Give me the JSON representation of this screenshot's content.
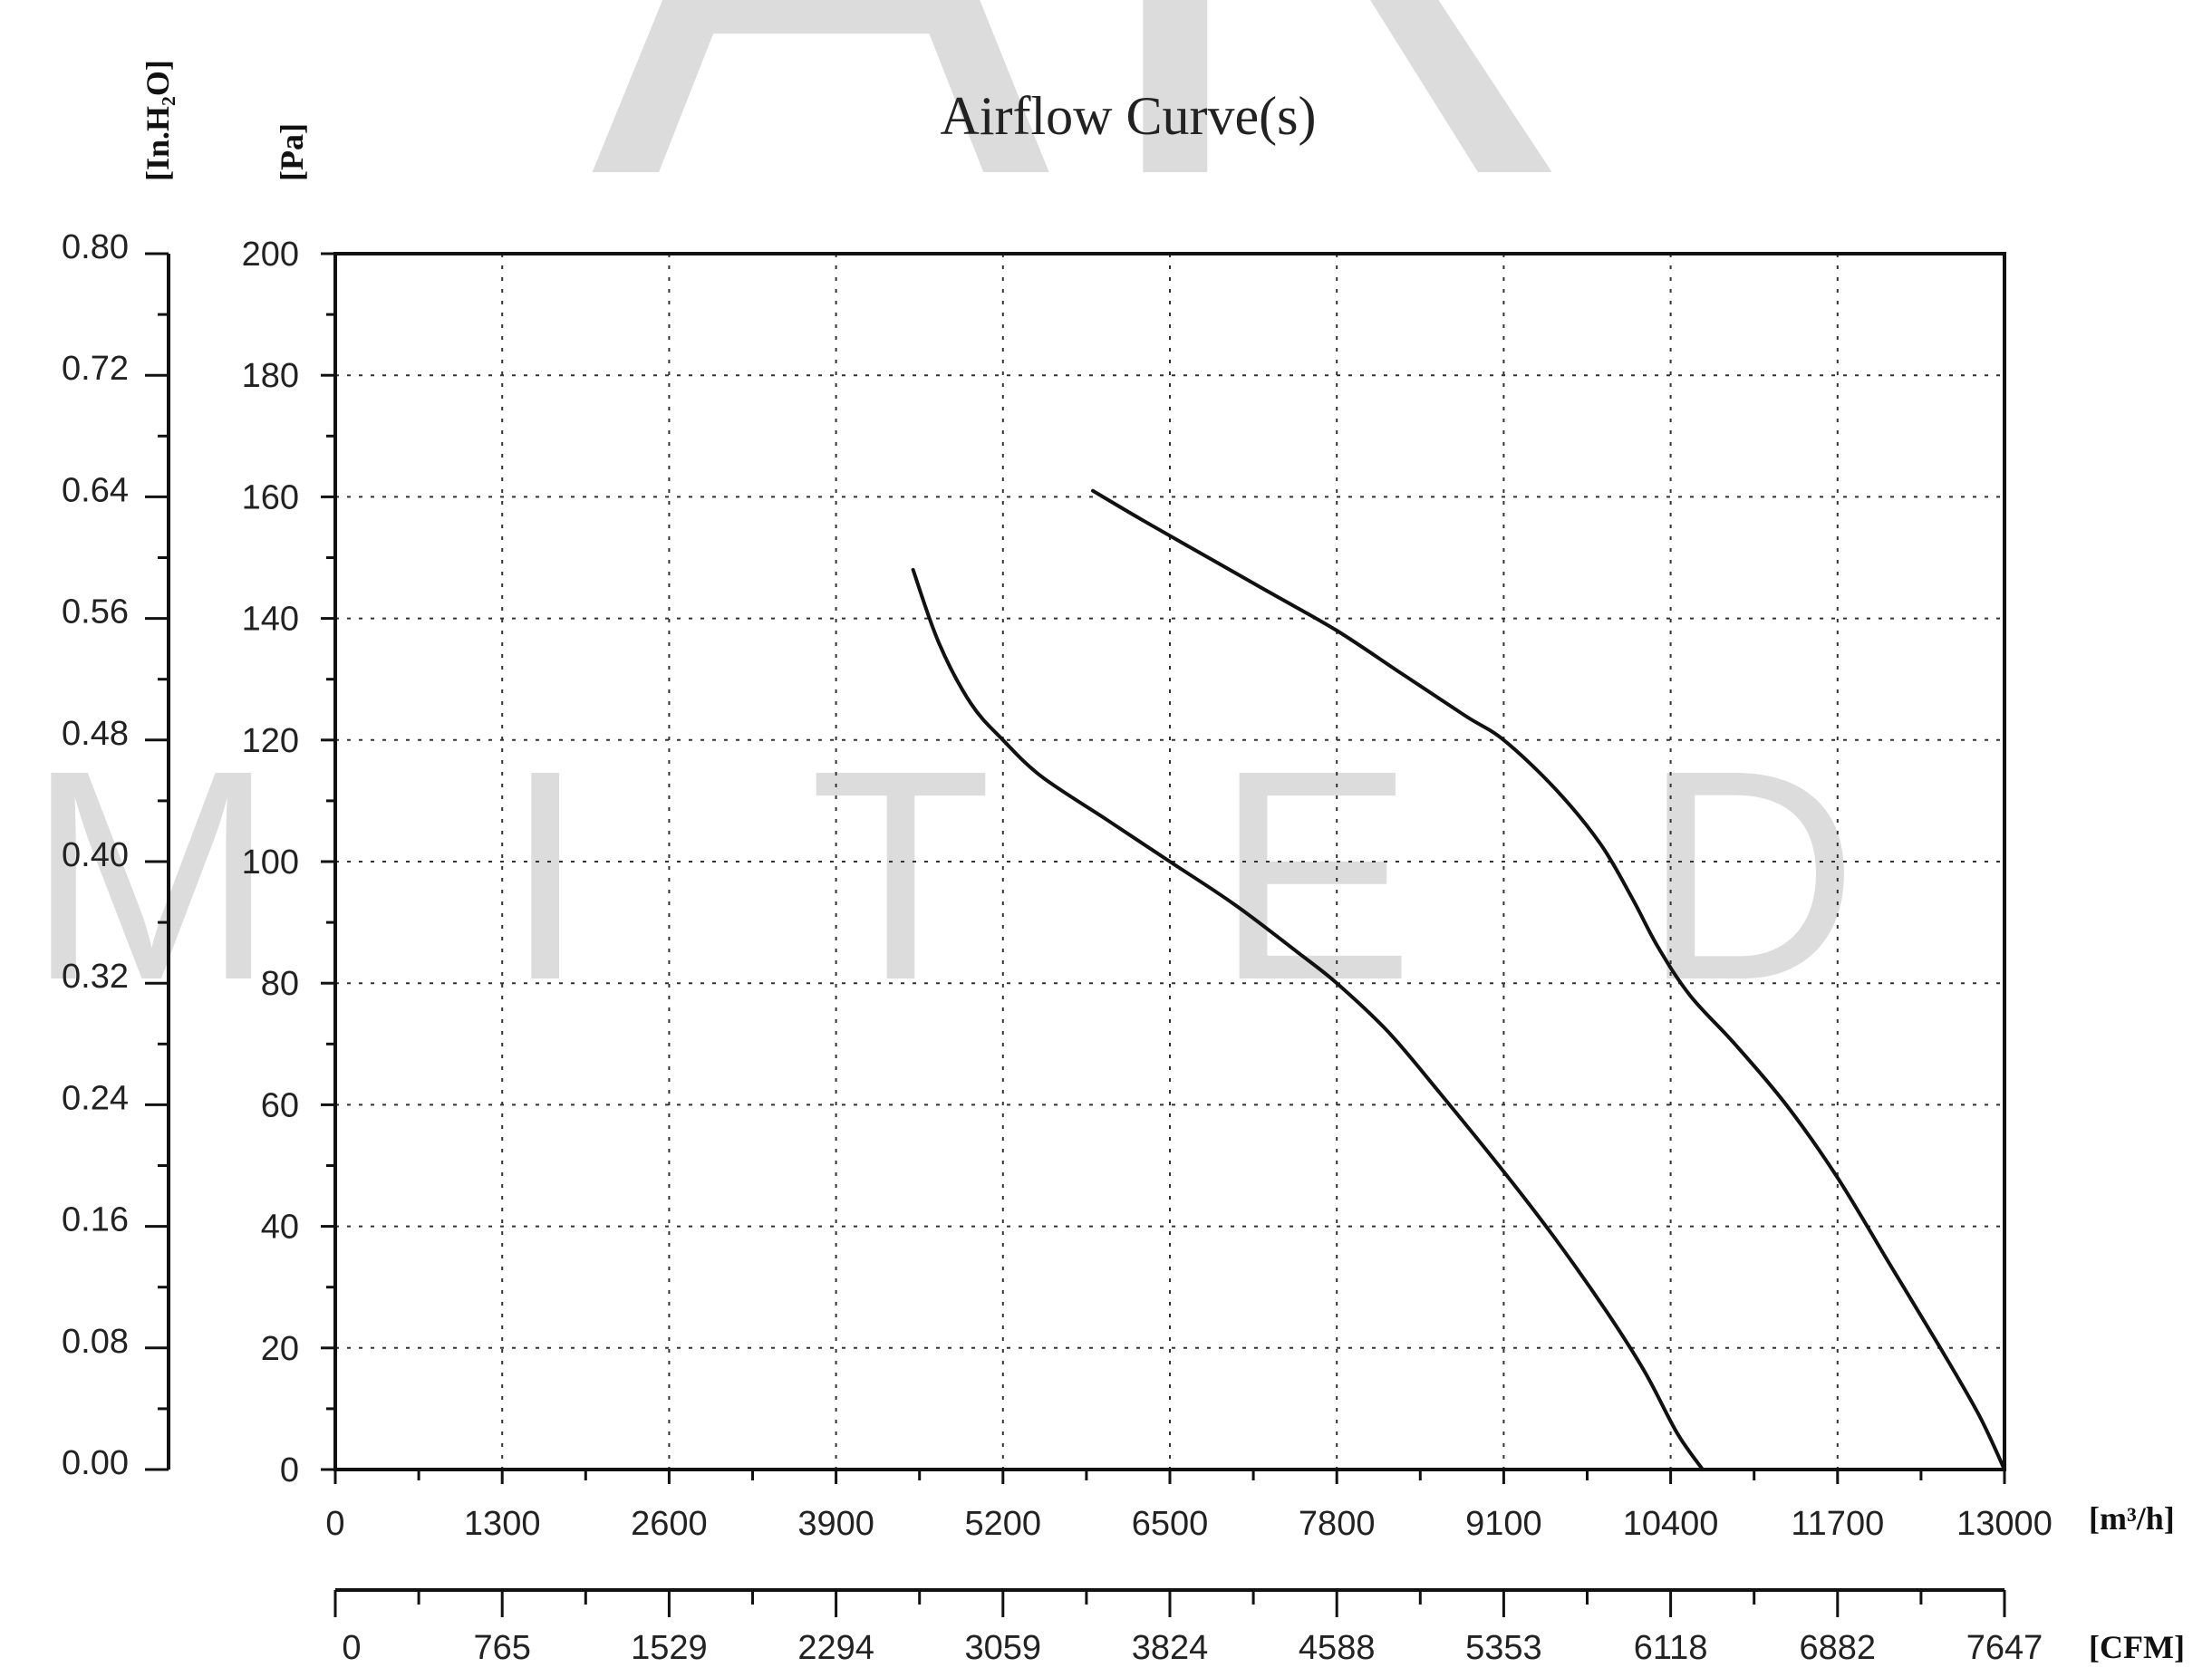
{
  "chart_data": {
    "type": "line",
    "title": "Airflow Curve(s)",
    "x": {
      "label": "[m³/h]",
      "ticks": [
        0,
        1300,
        2600,
        3900,
        5200,
        6500,
        7800,
        9100,
        10400,
        11700,
        13000
      ],
      "range": [
        0,
        13000
      ]
    },
    "x2": {
      "label": "[CFM]",
      "ticks": [
        0,
        765,
        1529,
        2294,
        3059,
        3824,
        4588,
        5353,
        6118,
        6882,
        7647
      ],
      "range": [
        0,
        7647
      ]
    },
    "y": {
      "label": "[Pa]",
      "ticks": [
        0,
        20,
        40,
        60,
        80,
        100,
        120,
        140,
        160,
        180,
        200
      ],
      "range": [
        0,
        200
      ]
    },
    "y2": {
      "label": "[In.H₂O]",
      "ticks": [
        "0.00",
        "0.08",
        "0.16",
        "0.24",
        "0.32",
        "0.40",
        "0.48",
        "0.56",
        "0.64",
        "0.72",
        "0.80"
      ],
      "range": [
        0,
        0.8
      ]
    },
    "grid": true,
    "series": [
      {
        "points": [
          [
            4500,
            148
          ],
          [
            4700,
            136
          ],
          [
            4950,
            126
          ],
          [
            5200,
            120
          ],
          [
            5500,
            114
          ],
          [
            6000,
            107
          ],
          [
            6500,
            100
          ],
          [
            7000,
            93
          ],
          [
            7500,
            85
          ],
          [
            7800,
            80
          ],
          [
            8200,
            72
          ],
          [
            8600,
            62
          ],
          [
            9100,
            49
          ],
          [
            9500,
            38
          ],
          [
            9900,
            26
          ],
          [
            10200,
            16
          ],
          [
            10450,
            6
          ],
          [
            10650,
            0
          ]
        ]
      },
      {
        "points": [
          [
            5900,
            161
          ],
          [
            6300,
            156
          ],
          [
            6800,
            150
          ],
          [
            7300,
            144
          ],
          [
            7800,
            138
          ],
          [
            8300,
            131
          ],
          [
            8800,
            124
          ],
          [
            9100,
            120
          ],
          [
            9500,
            112
          ],
          [
            9850,
            103
          ],
          [
            10100,
            94
          ],
          [
            10300,
            86
          ],
          [
            10550,
            78
          ],
          [
            10900,
            70
          ],
          [
            11300,
            60
          ],
          [
            11700,
            48
          ],
          [
            12100,
            34
          ],
          [
            12500,
            20
          ],
          [
            12800,
            9
          ],
          [
            13000,
            0
          ]
        ]
      }
    ]
  },
  "watermark": {
    "top_text": "AR",
    "middle_text": "M I T E D"
  }
}
